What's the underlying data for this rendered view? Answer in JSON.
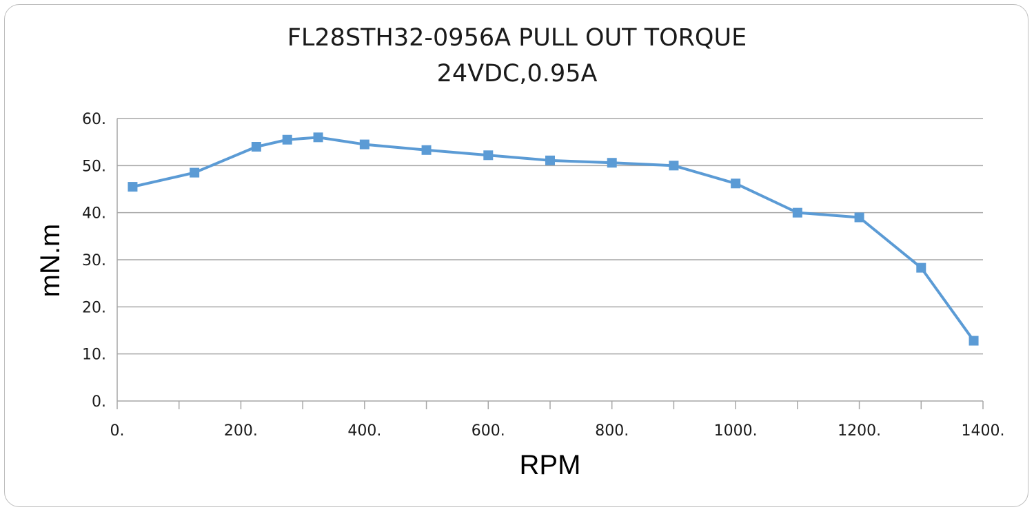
{
  "chart_data": {
    "type": "line",
    "title": "FL28STH32-0956A PULL OUT TORQUE",
    "subtitle": "24VDC,0.95A",
    "xlabel": "RPM",
    "ylabel": "mN.m",
    "xlim": [
      0,
      1400
    ],
    "ylim": [
      0,
      60
    ],
    "x_ticks": [
      "0.",
      "200.",
      "400.",
      "600.",
      "800.",
      "1000.",
      "1200.",
      "1400."
    ],
    "x_tick_values": [
      0,
      200,
      400,
      600,
      800,
      1000,
      1200,
      1400
    ],
    "y_ticks": [
      "0.",
      "10.",
      "20.",
      "30.",
      "40.",
      "50.",
      "60."
    ],
    "y_tick_values": [
      0,
      10,
      20,
      30,
      40,
      50,
      60
    ],
    "grid": true,
    "series": [
      {
        "color": "#5b9bd5",
        "marker": "square",
        "x": [
          25,
          125,
          225,
          275,
          325,
          400,
          500,
          600,
          700,
          800,
          900,
          1000,
          1100,
          1200,
          1300,
          1385
        ],
        "values": [
          45.5,
          48.5,
          54.0,
          55.5,
          56.0,
          54.5,
          53.3,
          52.2,
          51.1,
          50.6,
          50.0,
          46.2,
          40.0,
          39.0,
          28.3,
          12.8
        ]
      }
    ]
  }
}
